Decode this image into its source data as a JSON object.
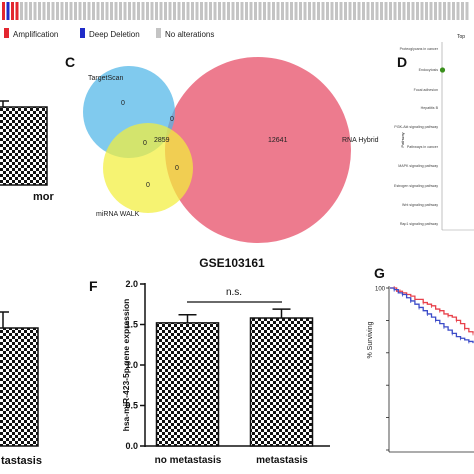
{
  "oncoprint": {
    "altered_samples": [
      "amplification",
      "deep_deletion",
      "amplification",
      "amplification"
    ],
    "unaltered_samples": 100,
    "legend": [
      {
        "label": "Amplification",
        "color": "#E3262F"
      },
      {
        "label": "Deep Deletion",
        "color": "#1F2BC8"
      },
      {
        "label": "No alterations",
        "color": "#C4C4C4"
      }
    ]
  },
  "partial_panels": {
    "top_left": {
      "category_label": "mor"
    },
    "bottom_left": {
      "category_label": "tastasis"
    }
  },
  "panels": {
    "c": "C",
    "d": "D",
    "f": "F",
    "g": "G"
  },
  "venn": {
    "sets": [
      {
        "label": "TargetScan",
        "color": "#4FB6E8"
      },
      {
        "label": "miRNA WALK",
        "color": "#F3EE3C"
      },
      {
        "label": "RNA Hybrid",
        "color": "#E8566E"
      }
    ],
    "regions": {
      "targetscan_only": "0",
      "targetscan_rnahybrid": "0",
      "targetscan_mirnawalk": "0",
      "all_three": "2859",
      "mirnawalk_only": "0",
      "mirnawalk_rnahybrid": "0",
      "rnahybrid_only": "12641"
    }
  },
  "chart_data": [
    {
      "type": "scatter",
      "title": "Top",
      "ylabel": "Pathway",
      "categories": [
        "Proteoglycans in cancer",
        "Endocytosis",
        "Focal adhesion",
        "Hepatitis B",
        "PI3K-Akt signaling pathway",
        "Pathways in cancer",
        "MAPK signaling pathway",
        "Estrogen signaling pathway",
        "Wnt signaling pathway",
        "Rap1 signaling pathway"
      ],
      "points": [
        {
          "category": "Endocytosis",
          "color": "#3A8F1C"
        }
      ]
    },
    {
      "type": "bar",
      "title": "GSE103161",
      "ylabel": "hsa-miR-423-5p gene expression",
      "categories": [
        "no metastasis",
        "metastasis"
      ],
      "values": [
        1.52,
        1.58
      ],
      "error_upper": [
        1.62,
        1.69
      ],
      "ylim": [
        0,
        2.0
      ],
      "yticks": [
        "0.0",
        "0.5",
        "1.0",
        "1.5",
        "2.0"
      ],
      "annotation": "n.s."
    },
    {
      "type": "line",
      "ylabel": "% Surviving",
      "ylim": [
        0,
        100
      ],
      "xlim": [
        0,
        100
      ],
      "yticks": [
        "100"
      ],
      "series": [
        {
          "color": "#E8404A",
          "x": [
            0,
            5,
            8,
            12,
            15,
            20,
            25,
            30,
            35,
            40,
            45,
            50,
            55,
            60,
            65,
            70,
            75,
            80,
            85,
            90,
            95,
            100
          ],
          "y": [
            100,
            100,
            98,
            98,
            97,
            96,
            95,
            93,
            93,
            91,
            90,
            89,
            87,
            86,
            84,
            83,
            82,
            80,
            78,
            75,
            73,
            72
          ]
        },
        {
          "color": "#3B4BC8",
          "x": [
            0,
            5,
            10,
            15,
            20,
            25,
            30,
            35,
            40,
            45,
            50,
            55,
            60,
            65,
            70,
            75,
            80,
            85,
            90,
            95,
            100
          ],
          "y": [
            100,
            99,
            97,
            96,
            94,
            92,
            90,
            88,
            86,
            84,
            82,
            80,
            78,
            76,
            74,
            72,
            70,
            69,
            68,
            67,
            66
          ]
        }
      ]
    }
  ]
}
